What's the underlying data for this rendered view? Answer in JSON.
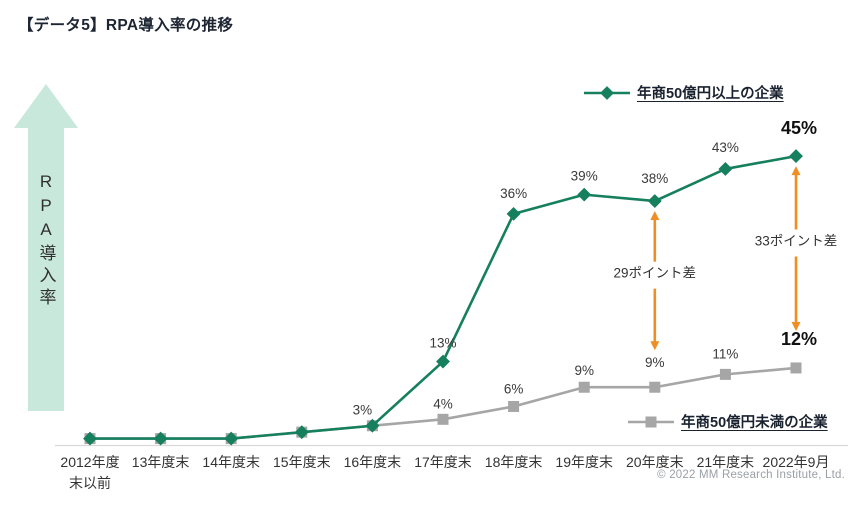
{
  "page": {
    "title": "【データ5】RPA導入率の推移"
  },
  "chart_data": {
    "type": "line",
    "title": "RPA導入率の推移",
    "ylabel": "RPA導入率",
    "xlabel": "",
    "ylim": [
      0,
      50
    ],
    "grid": false,
    "categories": [
      "2012年度\n末以前",
      "13年度末",
      "14年度末",
      "15年度末",
      "16年度末",
      "17年度末",
      "18年度末",
      "19年度末",
      "20年度末",
      "21年度末",
      "2022年9月"
    ],
    "series": [
      {
        "name": "年商50億円未満の企業",
        "marker": "square",
        "color": "#a6a6a6",
        "values": [
          1,
          1,
          1,
          2,
          3,
          4,
          6,
          9,
          9,
          11,
          12
        ],
        "labels": [
          "",
          "",
          "",
          "",
          "3%",
          "4%",
          "6%",
          "9%",
          "9%",
          "11%",
          "12%"
        ],
        "bold_label_index": 10,
        "legend_position": "below-line-right"
      },
      {
        "name": "年商50億円以上の企業",
        "marker": "diamond",
        "color": "#16805e",
        "values": [
          1,
          1,
          1,
          2,
          3,
          13,
          36,
          39,
          38,
          43,
          45
        ],
        "labels": [
          "",
          "",
          "",
          "",
          "",
          "13%",
          "36%",
          "39%",
          "38%",
          "43%",
          "45%"
        ],
        "bold_label_index": 10,
        "legend_position": "above-line-right"
      }
    ],
    "annotations": [
      {
        "text": "29ポイント差",
        "category_index": 8,
        "from_value": 38,
        "to_value": 9,
        "color": "#f08d23"
      },
      {
        "text": "33ポイント差",
        "category_index": 10,
        "from_value": 45,
        "to_value": 12,
        "color": "#f08d23"
      }
    ],
    "axis_arrow_color": "#c9e8dc"
  },
  "footer": {
    "copyright": "© 2022 MM Research Institute, Ltd."
  }
}
